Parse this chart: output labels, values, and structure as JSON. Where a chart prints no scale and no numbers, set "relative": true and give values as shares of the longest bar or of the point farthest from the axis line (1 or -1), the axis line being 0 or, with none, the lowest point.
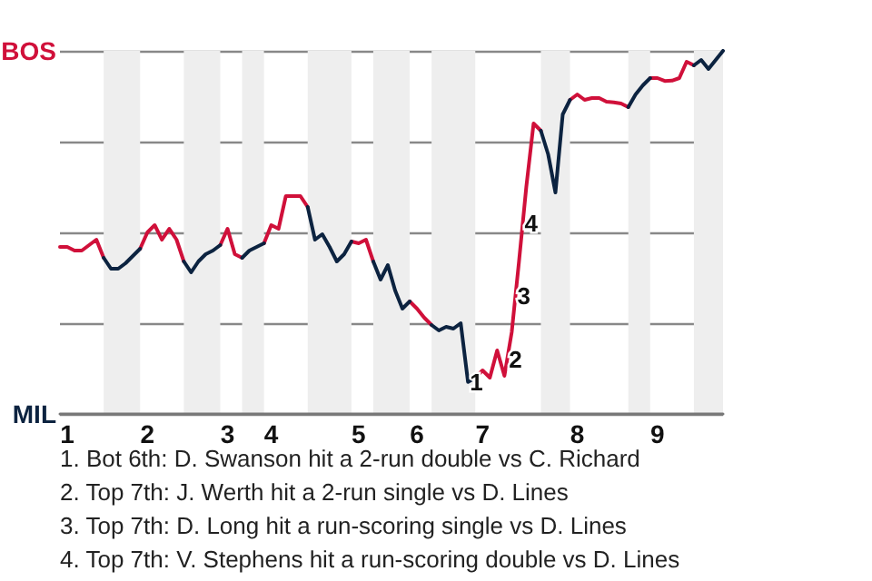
{
  "chart_data": {
    "type": "line",
    "relative": true,
    "categories": [
      null,
      "1",
      null,
      null,
      null,
      null,
      null,
      null,
      null,
      null,
      null,
      null,
      "2",
      null,
      null,
      null,
      null,
      null,
      null,
      null,
      null,
      null,
      null,
      "3",
      null,
      null,
      null,
      null,
      null,
      "4",
      null,
      null,
      null,
      null,
      null,
      null,
      null,
      null,
      null,
      null,
      null,
      "5",
      null,
      null,
      null,
      null,
      null,
      null,
      null,
      "6",
      null,
      null,
      null,
      null,
      null,
      null,
      null,
      null,
      "7",
      null,
      null,
      null,
      null,
      null,
      null,
      null,
      null,
      null,
      null,
      null,
      null,
      "8",
      null,
      null,
      null,
      null,
      null,
      null,
      null,
      null,
      null,
      null,
      "9",
      null,
      null,
      null,
      null,
      null,
      null,
      null,
      null,
      null
    ],
    "grid": "y",
    "marker": "none",
    "line_style": "solid",
    "series": [
      {
        "color": "#d0103a",
        "values": [
          0.46,
          0.46,
          0.45,
          0.45,
          0.465,
          0.48,
          0.43,
          null,
          null,
          null,
          null,
          0.455,
          0.5,
          0.52,
          0.48,
          0.51,
          0.48,
          0.42,
          null,
          null,
          null,
          null,
          0.465,
          0.51,
          0.44,
          0.43,
          null,
          null,
          0.47,
          0.52,
          0.51,
          0.6,
          0.6,
          0.6,
          0.57,
          null,
          null,
          null,
          null,
          null,
          0.475,
          0.47,
          0.48,
          0.42,
          null,
          null,
          null,
          null,
          0.31,
          0.29,
          0.265,
          0.245,
          null,
          null,
          null,
          null,
          null,
          0.1,
          0.12,
          0.1,
          0.175,
          0.105,
          0.225,
          0.42,
          0.625,
          0.8,
          0.78,
          null,
          null,
          null,
          0.865,
          0.88,
          0.865,
          0.87,
          0.87,
          0.86,
          0.858,
          0.855,
          0.845,
          null,
          null,
          0.925,
          0.925,
          0.917,
          0.918,
          0.925,
          0.97,
          0.96,
          null,
          null,
          null,
          null
        ]
      },
      {
        "color": "#0c2340",
        "values": [
          null,
          null,
          null,
          null,
          null,
          null,
          0.43,
          0.4,
          0.4,
          0.415,
          0.435,
          0.455,
          null,
          null,
          null,
          null,
          null,
          0.42,
          0.39,
          0.42,
          0.44,
          0.45,
          0.465,
          null,
          null,
          0.43,
          0.45,
          0.46,
          0.47,
          null,
          null,
          null,
          null,
          null,
          0.57,
          0.48,
          0.495,
          0.46,
          0.42,
          0.44,
          0.475,
          null,
          null,
          0.42,
          0.37,
          0.41,
          0.34,
          0.29,
          0.31,
          null,
          null,
          0.245,
          0.23,
          0.24,
          0.235,
          0.25,
          0.088,
          0.1,
          null,
          null,
          null,
          null,
          null,
          null,
          null,
          null,
          0.78,
          0.715,
          0.61,
          0.825,
          0.865,
          null,
          null,
          null,
          null,
          null,
          null,
          null,
          0.845,
          0.88,
          0.905,
          0.925,
          null,
          null,
          null,
          null,
          null,
          0.96,
          0.975,
          0.95,
          0.975,
          1
        ]
      }
    ],
    "annotations": [
      "BOS",
      "MIL",
      {
        "text": "1",
        "y": 0.088
      },
      {
        "text": "2",
        "y": 0.15
      },
      {
        "text": "3",
        "y": 0.325
      },
      {
        "text": "4",
        "y": 0.525
      },
      "1. Bot 6th: D. Swanson hit a 2-run double vs C. Richard",
      "2. Top 7th: J. Werth hit a 2-run single vs D. Lines",
      "3. Top 7th: D. Long hit a run-scoring single vs D. Lines",
      "4. Top 7th: V. Stephens hit a run-scoring double vs D. Lines"
    ]
  }
}
